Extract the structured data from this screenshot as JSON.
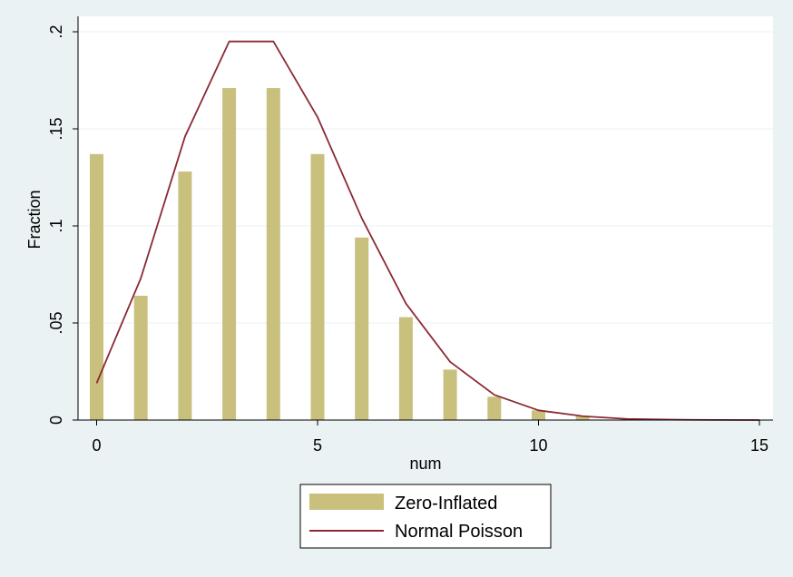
{
  "chart_data": {
    "type": "bar+line",
    "xlabel": "num",
    "ylabel": "Fraction",
    "xlim": [
      -0.5,
      15.3
    ],
    "ylim": [
      0,
      0.2
    ],
    "xticks": [
      0,
      5,
      10,
      15
    ],
    "yticks": [
      0,
      0.05,
      0.1,
      0.15,
      0.2
    ],
    "xtick_labels": [
      "0",
      "5",
      "10",
      "15"
    ],
    "ytick_labels": [
      "0",
      ".05",
      ".1",
      ".15",
      ".2"
    ],
    "grid": true,
    "legend": {
      "placement": "bottom"
    },
    "series": [
      {
        "name": "Zero-Inflated",
        "kind": "bar",
        "color": "#c9c07e",
        "x": [
          0,
          1,
          2,
          3,
          4,
          5,
          6,
          7,
          8,
          9,
          10,
          11,
          12,
          13,
          14,
          15
        ],
        "values": [
          0.137,
          0.064,
          0.128,
          0.171,
          0.171,
          0.137,
          0.094,
          0.053,
          0.026,
          0.012,
          0.005,
          0.002,
          0.0007,
          0.0003,
          0.0001,
          3e-05
        ]
      },
      {
        "name": "Normal Poisson",
        "kind": "line",
        "color": "#8b2a35",
        "x": [
          0,
          1,
          2,
          3,
          4,
          5,
          6,
          7,
          8,
          9,
          10,
          11,
          12,
          13,
          14,
          15
        ],
        "values": [
          0.019,
          0.073,
          0.146,
          0.195,
          0.195,
          0.156,
          0.104,
          0.06,
          0.03,
          0.013,
          0.005,
          0.002,
          0.0006,
          0.0002,
          5e-05,
          1e-05
        ]
      }
    ]
  }
}
